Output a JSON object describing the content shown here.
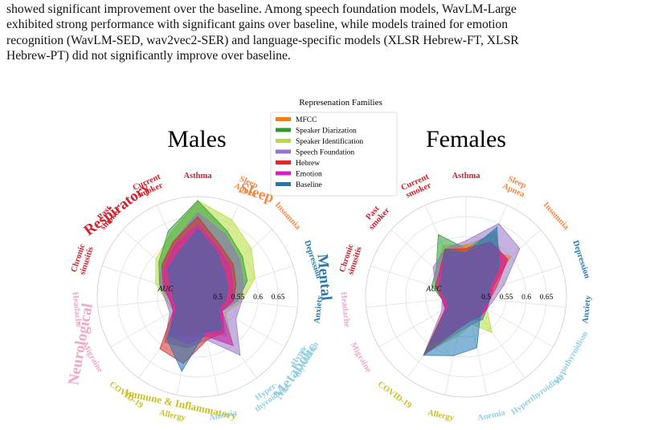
{
  "paragraph": {
    "lines": [
      "showed significant improvement over the baseline. Among speech foundation models, WavLM-Large",
      "exhibited strong performance with significant gains over baseline, while models trained for emotion",
      "recognition (WavLM-SED, wav2vec2-SER) and language-specific models (XLSR Hebrew-FT, XLSR",
      "Hebrew-PT) did not significantly improve over baseline."
    ]
  },
  "chart_data": {
    "type": "radar",
    "legend": {
      "title": "Represenation Families",
      "placement": "top-center",
      "entries": [
        {
          "name": "MFCC",
          "color": "#f07f1a"
        },
        {
          "name": "Speaker Diarization",
          "color": "#2e9a35"
        },
        {
          "name": "Speaker Identification",
          "color": "#b5dc3a"
        },
        {
          "name": "Speech Foundation",
          "color": "#9673c7"
        },
        {
          "name": "Hebrew",
          "color": "#d42a2a"
        },
        {
          "name": "Emotion",
          "color": "#d61fc0"
        },
        {
          "name": "Baseline",
          "color": "#1f77b4"
        }
      ]
    },
    "radial_label": "AUC",
    "rlim": [
      0.45,
      0.7
    ],
    "rticks": [
      "0.5",
      "0.55",
      "0.6",
      "0.65"
    ],
    "axes": [
      "Asthma",
      "Sleep Apnea",
      "Insomnia",
      "Depression",
      "Anxiety",
      "Hypothyroidism",
      "Hyperthyroidism",
      "Anemia",
      "Allergy",
      "COVID-19",
      "Migraine",
      "Headache",
      "Chronic sinusitis",
      "Past smoker",
      "Current smoker"
    ],
    "groups": [
      {
        "name": "Sleep",
        "color": "#f08a4b"
      },
      {
        "name": "Mental",
        "color": "#2a7ab0"
      },
      {
        "name": "Metabolic",
        "color": "#93cfe0"
      },
      {
        "name": "Immune & Inflammatory",
        "color": "#c9c023"
      },
      {
        "name": "Neurological",
        "color": "#f2a7c8"
      },
      {
        "name": "Respiratory",
        "color": "#d0212b"
      }
    ],
    "panels": [
      {
        "title": "Males",
        "axis_labels": [
          {
            "text": "Asthma",
            "color": "#d0212b"
          },
          {
            "text": "Sleep\nApnea",
            "color": "#f08a4b"
          },
          {
            "text": "Insomnia",
            "color": "#f08a4b"
          },
          {
            "text": "Depression",
            "color": "#2a7ab0"
          },
          {
            "text": "Anxiety",
            "color": "#2a7ab0"
          },
          {
            "text": "Hypo-\nthyroidism",
            "color": "#93cfe0"
          },
          {
            "text": "Hyper-\nthyroidism",
            "color": "#93cfe0"
          },
          {
            "text": "Anemia",
            "color": "#93cfe0"
          },
          {
            "text": "Allergy",
            "color": "#c9c023"
          },
          {
            "text": "COVID-19",
            "color": "#c9c023"
          },
          {
            "text": "Migraine",
            "color": "#f2a7c8"
          },
          {
            "text": "Headache",
            "color": "#f2a7c8"
          },
          {
            "text": "Chronic\nsinusitis",
            "color": "#d0212b"
          },
          {
            "text": "Past\nsmoker",
            "color": "#d0212b"
          },
          {
            "text": "Current\nsmoker",
            "color": "#d0212b"
          }
        ],
        "series": [
          {
            "name": "Speaker Identification",
            "values": [
              0.69,
              0.66,
              0.63,
              0.6,
              0.56,
              0.53,
              0.6,
              0.55,
              0.55,
              0.58,
              0.52,
              0.53,
              0.56,
              0.59,
              0.62
            ]
          },
          {
            "name": "Speaker Diarization",
            "values": [
              0.69,
              0.63,
              0.6,
              0.58,
              0.55,
              0.52,
              0.57,
              0.54,
              0.55,
              0.57,
              0.52,
              0.52,
              0.55,
              0.58,
              0.63
            ]
          },
          {
            "name": "Speech Foundation",
            "values": [
              0.66,
              0.62,
              0.59,
              0.57,
              0.56,
              0.56,
              0.63,
              0.56,
              0.58,
              0.59,
              0.53,
              0.53,
              0.55,
              0.57,
              0.6
            ]
          },
          {
            "name": "MFCC",
            "values": [
              0.62,
              0.57,
              0.55,
              0.54,
              0.53,
              0.51,
              0.54,
              0.53,
              0.55,
              0.55,
              0.51,
              0.51,
              0.53,
              0.55,
              0.58
            ]
          },
          {
            "name": "Hebrew",
            "values": [
              0.65,
              0.59,
              0.57,
              0.55,
              0.54,
              0.52,
              0.56,
              0.56,
              0.62,
              0.61,
              0.52,
              0.52,
              0.54,
              0.57,
              0.6
            ]
          },
          {
            "name": "Emotion",
            "values": [
              0.63,
              0.58,
              0.56,
              0.54,
              0.54,
              0.52,
              0.6,
              0.55,
              0.57,
              0.57,
              0.52,
              0.52,
              0.54,
              0.56,
              0.59
            ]
          },
          {
            "name": "Baseline",
            "values": [
              0.62,
              0.57,
              0.54,
              0.53,
              0.52,
              0.51,
              0.55,
              0.54,
              0.64,
              0.58,
              0.51,
              0.51,
              0.52,
              0.55,
              0.57
            ]
          }
        ]
      },
      {
        "title": "Females",
        "axis_labels": [
          {
            "text": "Asthma",
            "color": "#d0212b"
          },
          {
            "text": "Sleep\nApnea",
            "color": "#f08a4b"
          },
          {
            "text": "Insomnia",
            "color": "#f08a4b"
          },
          {
            "text": "Depression",
            "color": "#2a7ab0"
          },
          {
            "text": "Anxiety",
            "color": "#2a7ab0"
          },
          {
            "text": "Hypothyroidism",
            "color": "#93cfe0"
          },
          {
            "text": "Hyperthyroidism",
            "color": "#93cfe0"
          },
          {
            "text": "Anemia",
            "color": "#93cfe0"
          },
          {
            "text": "Allergy",
            "color": "#c9c023"
          },
          {
            "text": "COVID-19",
            "color": "#c9c023"
          },
          {
            "text": "Migraine",
            "color": "#f2a7c8"
          },
          {
            "text": "Headache",
            "color": "#f2a7c8"
          },
          {
            "text": "Chronic\nsinusitis",
            "color": "#d0212b"
          },
          {
            "text": "Past\nsmoker",
            "color": "#d0212b"
          },
          {
            "text": "Current\nsmoker",
            "color": "#d0212b"
          }
        ],
        "series": [
          {
            "name": "Speaker Identification",
            "values": [
              0.58,
              0.62,
              0.58,
              0.52,
              0.51,
              0.51,
              0.56,
              0.52,
              0.55,
              0.62,
              0.51,
              0.51,
              0.53,
              0.55,
              0.59
            ]
          },
          {
            "name": "Speaker Diarization",
            "values": [
              0.57,
              0.63,
              0.57,
              0.52,
              0.51,
              0.51,
              0.52,
              0.51,
              0.53,
              0.62,
              0.51,
              0.51,
              0.54,
              0.55,
              0.62
            ]
          },
          {
            "name": "Speech Foundation",
            "values": [
              0.59,
              0.65,
              0.63,
              0.55,
              0.52,
              0.51,
              0.52,
              0.52,
              0.54,
              0.63,
              0.52,
              0.51,
              0.53,
              0.56,
              0.58
            ]
          },
          {
            "name": "MFCC",
            "values": [
              0.58,
              0.58,
              0.6,
              0.52,
              0.51,
              0.5,
              0.51,
              0.51,
              0.53,
              0.61,
              0.5,
              0.5,
              0.52,
              0.54,
              0.57
            ]
          },
          {
            "name": "Hebrew",
            "values": [
              0.57,
              0.6,
              0.59,
              0.53,
              0.51,
              0.51,
              0.51,
              0.51,
              0.53,
              0.63,
              0.51,
              0.51,
              0.53,
              0.54,
              0.58
            ]
          },
          {
            "name": "Emotion",
            "values": [
              0.56,
              0.6,
              0.59,
              0.52,
              0.51,
              0.51,
              0.51,
              0.51,
              0.53,
              0.6,
              0.51,
              0.51,
              0.52,
              0.54,
              0.57
            ]
          },
          {
            "name": "Baseline",
            "values": [
              0.56,
              0.64,
              0.56,
              0.51,
              0.51,
              0.5,
              0.51,
              0.58,
              0.6,
              0.63,
              0.5,
              0.5,
              0.52,
              0.53,
              0.58
            ]
          }
        ]
      }
    ]
  }
}
